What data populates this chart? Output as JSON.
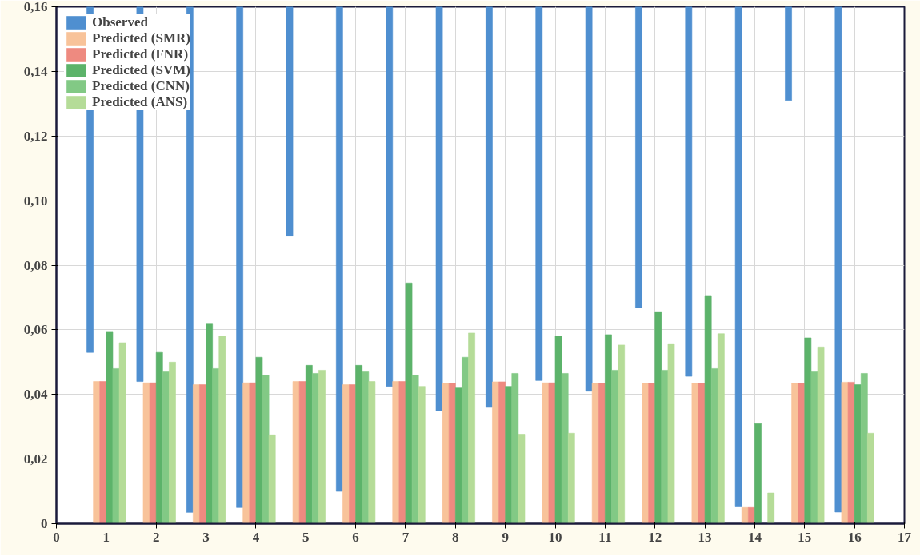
{
  "chart_data": {
    "type": "bar",
    "x": [
      1,
      2,
      3,
      4,
      5,
      6,
      7,
      8,
      9,
      10,
      11,
      12,
      13,
      14,
      15,
      16
    ],
    "series": [
      {
        "name": "Observed",
        "color": "#4f8fd0",
        "base": [
          0.053,
          0.044,
          0.0035,
          0.005,
          0.089,
          0.01,
          0.0425,
          0.035,
          0.036,
          0.0443,
          0.041,
          0.0668,
          0.0456,
          0.0052,
          0.131,
          0.0036
        ],
        "values": [
          0.107,
          0.116,
          0.1565,
          0.155,
          0.071,
          0.15,
          0.1175,
          0.125,
          0.124,
          0.1157,
          0.119,
          0.0932,
          0.1144,
          0.1548,
          0.029,
          0.1564
        ]
      },
      {
        "name": "Predicted (SMR)",
        "color": "#f8c39a",
        "values": [
          0.044,
          0.0436,
          0.043,
          0.0436,
          0.044,
          0.043,
          0.044,
          0.0435,
          0.0439,
          0.0436,
          0.0434,
          0.0434,
          0.0434,
          0.005,
          0.0434,
          0.0438
        ]
      },
      {
        "name": "Predicted (FNR)",
        "color": "#ee8a80",
        "values": [
          0.044,
          0.0436,
          0.043,
          0.0436,
          0.044,
          0.043,
          0.044,
          0.0435,
          0.0439,
          0.0436,
          0.0434,
          0.0434,
          0.0434,
          0.005,
          0.0434,
          0.0438
        ]
      },
      {
        "name": "Predicted (SVM)",
        "color": "#5cb36a",
        "values": [
          0.0595,
          0.053,
          0.062,
          0.0515,
          0.049,
          0.049,
          0.0745,
          0.042,
          0.0425,
          0.058,
          0.0585,
          0.0656,
          0.0706,
          0.031,
          0.0575,
          0.043
        ]
      },
      {
        "name": "Predicted (CNN)",
        "color": "#82c985",
        "values": [
          0.048,
          0.047,
          0.048,
          0.046,
          0.0465,
          0.047,
          0.046,
          0.0515,
          0.0465,
          0.0465,
          0.0475,
          0.0475,
          0.048,
          null,
          0.047,
          0.0465
        ]
      },
      {
        "name": "Predicted (ANS)",
        "color": "#b5dc98",
        "values": [
          0.056,
          0.05,
          0.058,
          0.0275,
          0.0475,
          0.044,
          0.0425,
          0.059,
          0.0277,
          0.028,
          0.0553,
          0.0557,
          0.0588,
          0.0095,
          0.0547,
          0.028
        ]
      }
    ],
    "xlim": [
      0,
      17
    ],
    "xticks": [
      0,
      1,
      2,
      3,
      4,
      5,
      6,
      7,
      8,
      9,
      10,
      11,
      12,
      13,
      14,
      15,
      16,
      17
    ],
    "ylim": [
      0,
      0.16
    ],
    "yticks": [
      {
        "value": 0,
        "label": "0"
      },
      {
        "value": 0.02,
        "label": "0,02"
      },
      {
        "value": 0.04,
        "label": "0,04"
      },
      {
        "value": 0.06,
        "label": "0,06"
      },
      {
        "value": 0.08,
        "label": "0,08"
      },
      {
        "value": 0.1,
        "label": "0,10"
      },
      {
        "value": 0.12,
        "label": "0,12"
      },
      {
        "value": 0.14,
        "label": "0,14"
      },
      {
        "value": 0.16,
        "label": "0,16"
      }
    ],
    "grid": true,
    "legend": "top left"
  }
}
